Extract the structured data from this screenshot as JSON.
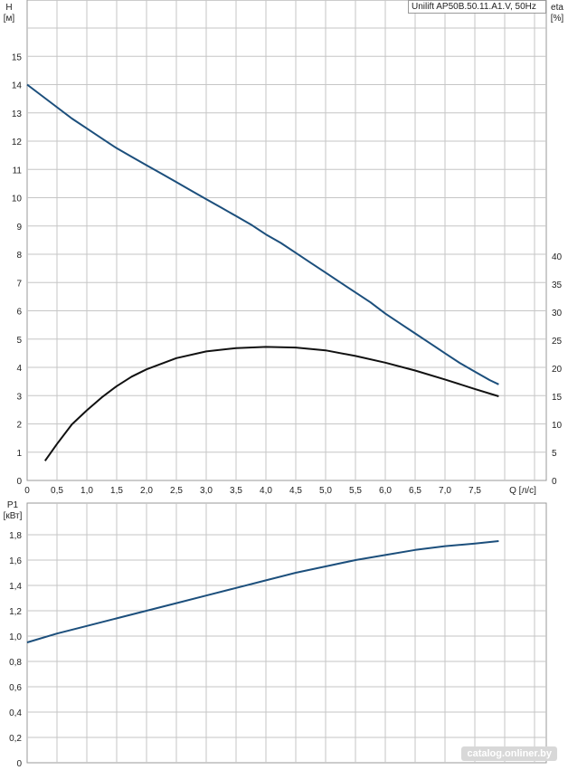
{
  "chart_data": [
    {
      "type": "line",
      "title": "Unilift AP50B.50.11.A1.V, 50Hz",
      "xlabel": "Q [л/с]",
      "ylabel": "H",
      "ylabel_unit": "[м]",
      "y2label": "eta",
      "y2label_unit": "[%]",
      "xlim": [
        0,
        8.6
      ],
      "ylim": [
        0,
        16
      ],
      "y2lim": [
        0,
        45
      ],
      "grid": true,
      "x_ticks": [
        "0",
        "0,5",
        "1,0",
        "1,5",
        "2,0",
        "2,5",
        "3,0",
        "3,5",
        "4,0",
        "4,5",
        "5,0",
        "5,5",
        "6,0",
        "6,5",
        "7,0",
        "7,5"
      ],
      "y_ticks": [
        "0",
        "1",
        "2",
        "3",
        "4",
        "5",
        "6",
        "7",
        "8",
        "9",
        "10",
        "11",
        "12",
        "13",
        "14",
        "15"
      ],
      "y2_ticks": [
        "0",
        "5",
        "10",
        "15",
        "20",
        "25",
        "30",
        "35",
        "40"
      ],
      "series": [
        {
          "axis": "left",
          "color": "#1c4f7c",
          "x": [
            0,
            0.25,
            0.5,
            0.75,
            1.0,
            1.25,
            1.5,
            1.75,
            2.0,
            2.25,
            2.5,
            2.75,
            3.0,
            3.25,
            3.5,
            3.75,
            4.0,
            4.25,
            4.5,
            4.75,
            5.0,
            5.25,
            5.5,
            5.75,
            6.0,
            6.25,
            6.5,
            6.75,
            7.0,
            7.25,
            7.5,
            7.75,
            7.9
          ],
          "values": [
            14.0,
            13.6,
            13.2,
            12.8,
            12.45,
            12.1,
            11.75,
            11.45,
            11.15,
            10.85,
            10.55,
            10.25,
            9.95,
            9.65,
            9.35,
            9.05,
            8.7,
            8.4,
            8.05,
            7.7,
            7.35,
            7.0,
            6.65,
            6.3,
            5.9,
            5.55,
            5.2,
            4.85,
            4.5,
            4.15,
            3.85,
            3.55,
            3.4
          ]
        },
        {
          "axis": "right",
          "color": "#111111",
          "x": [
            0.3,
            0.5,
            0.75,
            1.0,
            1.25,
            1.5,
            1.75,
            2.0,
            2.5,
            3.0,
            3.5,
            4.0,
            4.5,
            5.0,
            5.5,
            6.0,
            6.5,
            7.0,
            7.5,
            7.9
          ],
          "values": [
            3.5,
            6.5,
            10.0,
            12.5,
            14.8,
            16.8,
            18.5,
            19.8,
            21.8,
            23.0,
            23.6,
            23.8,
            23.7,
            23.2,
            22.2,
            21.0,
            19.6,
            18.0,
            16.3,
            15.0
          ]
        }
      ]
    },
    {
      "type": "line",
      "ylabel": "P1",
      "ylabel_unit": "[кВт]",
      "xlim": [
        0,
        8.6
      ],
      "ylim": [
        0,
        2.0
      ],
      "grid": true,
      "y_ticks": [
        "0",
        "0,2",
        "0,4",
        "0,6",
        "0,8",
        "1,0",
        "1,2",
        "1,4",
        "1,6",
        "1,8"
      ],
      "series": [
        {
          "axis": "left",
          "color": "#1c4f7c",
          "x": [
            0,
            0.5,
            1.0,
            1.5,
            2.0,
            2.5,
            3.0,
            3.5,
            4.0,
            4.5,
            5.0,
            5.5,
            6.0,
            6.5,
            7.0,
            7.5,
            7.9
          ],
          "values": [
            0.95,
            1.02,
            1.08,
            1.14,
            1.2,
            1.26,
            1.32,
            1.38,
            1.44,
            1.5,
            1.55,
            1.6,
            1.64,
            1.68,
            1.71,
            1.73,
            1.75
          ]
        }
      ]
    }
  ],
  "watermark": "catalog.onliner.by"
}
